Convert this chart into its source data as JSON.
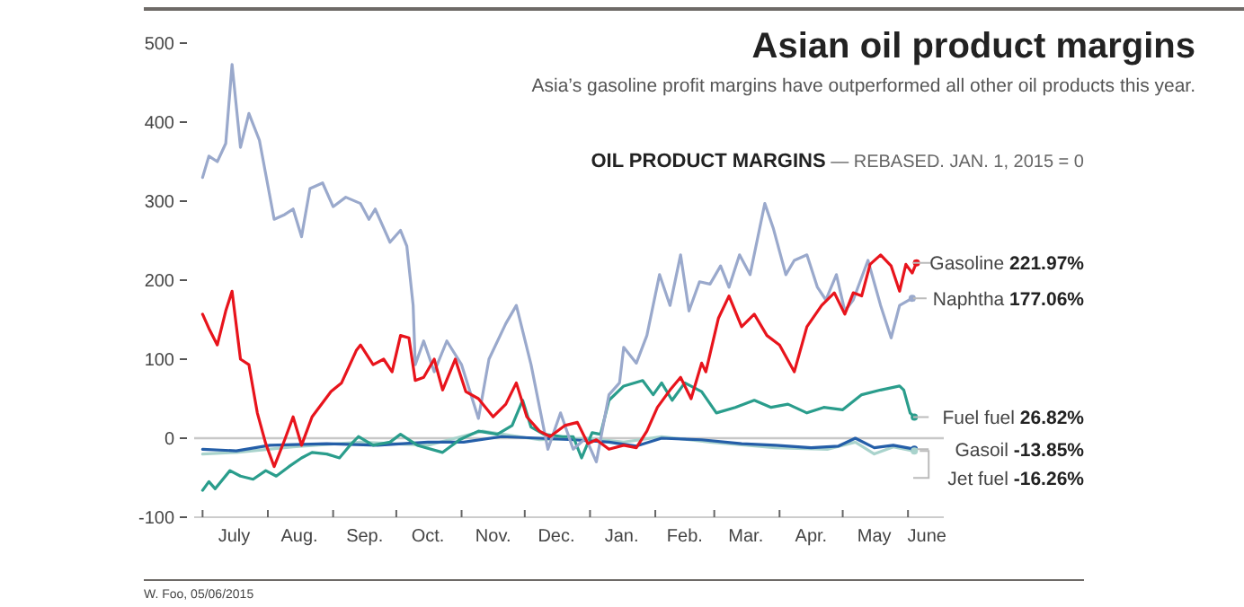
{
  "chart_data": {
    "type": "line",
    "title": "Asian oil product margins",
    "subtitle": "Asia’s gasoline profit margins have outperformed all other oil products this year.",
    "legend_title": "OIL PRODUCT MARGINS",
    "annotations": [
      "— REBASED. JAN. 1, 2015 = 0",
      "W. Foo, 05/06/2015",
      "221.97%",
      "177.06%",
      "26.82%",
      "-13.85%",
      "-16.26%"
    ],
    "xlim": [
      "2014-06-27",
      "2015-06-18"
    ],
    "xticks": [
      {
        "value": "2014-07-01",
        "label": null
      },
      {
        "value": "2014-07-16",
        "label": "July"
      },
      {
        "value": "2014-08-01",
        "label": null
      },
      {
        "value": "2014-08-16",
        "label": "Aug."
      },
      {
        "value": "2014-09-01",
        "label": null
      },
      {
        "value": "2014-09-16",
        "label": "Sep."
      },
      {
        "value": "2014-10-01",
        "label": null
      },
      {
        "value": "2014-10-16",
        "label": "Oct."
      },
      {
        "value": "2014-11-01",
        "label": null
      },
      {
        "value": "2014-11-16",
        "label": "Nov."
      },
      {
        "value": "2014-12-01",
        "label": null
      },
      {
        "value": "2014-12-16",
        "label": "Dec."
      },
      {
        "value": "2015-01-01",
        "label": null
      },
      {
        "value": "2015-01-16",
        "label": "Jan."
      },
      {
        "value": "2015-02-01",
        "label": null
      },
      {
        "value": "2015-02-15",
        "label": "Feb."
      },
      {
        "value": "2015-03-01",
        "label": null
      },
      {
        "value": "2015-03-16",
        "label": "Mar."
      },
      {
        "value": "2015-04-01",
        "label": null
      },
      {
        "value": "2015-04-16",
        "label": "Apr."
      },
      {
        "value": "2015-05-01",
        "label": null
      },
      {
        "value": "2015-05-16",
        "label": "May"
      },
      {
        "value": "2015-06-01",
        "label": null
      },
      {
        "value": "2015-06-10",
        "label": "June"
      }
    ],
    "ylim": [
      -100,
      500
    ],
    "yticks": [
      -100,
      0,
      100,
      200,
      300,
      400,
      500
    ],
    "ref_lines": [
      {
        "axis": "y",
        "value": 0,
        "color": "#c8c8c8"
      }
    ],
    "grid": false,
    "legend": "right",
    "line_style": "solid",
    "series": [
      {
        "name": "Gasoline",
        "color": "#e8141c",
        "x": [
          "2014-07-01",
          "2014-07-04",
          "2014-07-08",
          "2014-07-12",
          "2014-07-15",
          "2014-07-19",
          "2014-07-23",
          "2014-07-27",
          "2014-07-31",
          "2014-08-04",
          "2014-08-09",
          "2014-08-13",
          "2014-08-17",
          "2014-08-22",
          "2014-08-31",
          "2014-09-05",
          "2014-09-12",
          "2014-09-14",
          "2014-09-20",
          "2014-09-25",
          "2014-09-29",
          "2014-10-03",
          "2014-10-07",
          "2014-10-10",
          "2014-10-14",
          "2014-10-19",
          "2014-10-23",
          "2014-10-29",
          "2014-11-03",
          "2014-11-09",
          "2014-11-16",
          "2014-11-22",
          "2014-11-27",
          "2014-12-02",
          "2014-12-08",
          "2014-12-13",
          "2014-12-20",
          "2014-12-26",
          "2014-12-31",
          "2015-01-04",
          "2015-01-10",
          "2015-01-17",
          "2015-01-23",
          "2015-01-28",
          "2015-02-02",
          "2015-02-08",
          "2015-02-13",
          "2015-02-18",
          "2015-02-23",
          "2015-02-25",
          "2015-03-03",
          "2015-03-08",
          "2015-03-14",
          "2015-03-20",
          "2015-03-26",
          "2015-04-01",
          "2015-04-08",
          "2015-04-14",
          "2015-04-21",
          "2015-04-27",
          "2015-05-02",
          "2015-05-06",
          "2015-05-10",
          "2015-05-14",
          "2015-05-19",
          "2015-05-24",
          "2015-05-28",
          "2015-05-31",
          "2015-06-03",
          "2015-06-05"
        ],
        "values": [
          157,
          139,
          118,
          161,
          186,
          100,
          93,
          32,
          -7,
          -36,
          -2,
          27,
          -9,
          27,
          59,
          70,
          111,
          118,
          93,
          100,
          84,
          130,
          127,
          73,
          77,
          100,
          61,
          100,
          59,
          50,
          27,
          43,
          70,
          27,
          9,
          2,
          16,
          20,
          -7,
          -2,
          -14,
          -9,
          -12,
          9,
          39,
          61,
          77,
          50,
          95,
          84,
          152,
          180,
          141,
          157,
          130,
          118,
          84,
          141,
          168,
          184,
          157,
          184,
          180,
          220,
          232,
          218,
          186,
          220,
          209,
          221.97
        ]
      },
      {
        "name": "Naphtha",
        "color": "#9aa9cc",
        "x": [
          "2014-07-01",
          "2014-07-04",
          "2014-07-08",
          "2014-07-12",
          "2014-07-15",
          "2014-07-19",
          "2014-07-23",
          "2014-07-28",
          "2014-07-31",
          "2014-08-04",
          "2014-08-09",
          "2014-08-13",
          "2014-08-17",
          "2014-08-21",
          "2014-08-27",
          "2014-09-01",
          "2014-09-07",
          "2014-09-14",
          "2014-09-18",
          "2014-09-21",
          "2014-09-28",
          "2014-10-03",
          "2014-10-06",
          "2014-10-09",
          "2014-10-10",
          "2014-10-14",
          "2014-10-19",
          "2014-10-25",
          "2014-11-01",
          "2014-11-09",
          "2014-11-14",
          "2014-11-22",
          "2014-11-27",
          "2014-12-04",
          "2014-12-12",
          "2014-12-18",
          "2014-12-24",
          "2014-12-30",
          "2015-01-04",
          "2015-01-10",
          "2015-01-15",
          "2015-01-17",
          "2015-01-23",
          "2015-01-28",
          "2015-02-03",
          "2015-02-08",
          "2015-02-13",
          "2015-02-17",
          "2015-02-22",
          "2015-02-27",
          "2015-03-04",
          "2015-03-08",
          "2015-03-13",
          "2015-03-18",
          "2015-03-25",
          "2015-03-29",
          "2015-04-04",
          "2015-04-08",
          "2015-04-14",
          "2015-04-19",
          "2015-04-23",
          "2015-04-28",
          "2015-05-02",
          "2015-05-06",
          "2015-05-13",
          "2015-05-19",
          "2015-05-24",
          "2015-05-28",
          "2015-06-03"
        ],
        "values": [
          330,
          357,
          350,
          373,
          473,
          368,
          411,
          377,
          334,
          277,
          283,
          290,
          255,
          316,
          323,
          293,
          305,
          297,
          277,
          290,
          248,
          263,
          243,
          168,
          93,
          123,
          84,
          123,
          93,
          25,
          100,
          145,
          168,
          93,
          -14,
          32,
          -14,
          0,
          -30,
          55,
          70,
          115,
          95,
          130,
          207,
          168,
          232,
          161,
          198,
          195,
          218,
          191,
          232,
          207,
          297,
          266,
          207,
          225,
          232,
          191,
          175,
          207,
          161,
          175,
          225,
          168,
          127,
          168,
          177.06
        ]
      },
      {
        "name": "Fuel fuel",
        "color": "#2a9d8c",
        "x": [
          "2014-07-01",
          "2014-07-04",
          "2014-07-07",
          "2014-07-14",
          "2014-07-19",
          "2014-07-25",
          "2014-07-31",
          "2014-08-05",
          "2014-08-11",
          "2014-08-17",
          "2014-08-22",
          "2014-08-29",
          "2014-09-04",
          "2014-09-09",
          "2014-09-13",
          "2014-09-20",
          "2014-09-28",
          "2014-10-03",
          "2014-10-11",
          "2014-10-23",
          "2014-10-31",
          "2014-11-09",
          "2014-11-18",
          "2014-11-25",
          "2014-11-30",
          "2014-12-04",
          "2014-12-10",
          "2014-12-19",
          "2014-12-24",
          "2014-12-28",
          "2015-01-02",
          "2015-01-06",
          "2015-01-10",
          "2015-01-17",
          "2015-01-26",
          "2015-01-31",
          "2015-02-04",
          "2015-02-09",
          "2015-02-15",
          "2015-02-23",
          "2015-03-02",
          "2015-03-11",
          "2015-03-20",
          "2015-03-28",
          "2015-04-05",
          "2015-04-14",
          "2015-04-22",
          "2015-05-01",
          "2015-05-10",
          "2015-05-19",
          "2015-05-28",
          "2015-05-30",
          "2015-06-02",
          "2015-06-04"
        ],
        "values": [
          -66,
          -55,
          -64,
          -41,
          -48,
          -52,
          -41,
          -48,
          -36,
          -25,
          -18,
          -20,
          -25,
          -9,
          2,
          -9,
          -5,
          5,
          -9,
          -18,
          -2,
          9,
          5,
          16,
          48,
          14,
          5,
          2,
          2,
          -25,
          7,
          5,
          48,
          66,
          73,
          55,
          70,
          48,
          70,
          59,
          32,
          39,
          48,
          39,
          43,
          32,
          39,
          36,
          55,
          61,
          66,
          61,
          32,
          26.82
        ]
      },
      {
        "name": "Gasoil",
        "color": "#245ea8",
        "x": [
          "2014-07-01",
          "2014-07-17",
          "2014-08-02",
          "2014-08-29",
          "2014-09-22",
          "2014-10-16",
          "2014-11-02",
          "2014-11-20",
          "2014-12-08",
          "2014-12-24",
          "2015-01-10",
          "2015-01-23",
          "2015-02-04",
          "2015-02-23",
          "2015-03-14",
          "2015-03-30",
          "2015-04-16",
          "2015-04-29",
          "2015-05-07",
          "2015-05-16",
          "2015-05-25",
          "2015-06-04"
        ],
        "values": [
          -14,
          -16,
          -9,
          -7,
          -9,
          -5,
          -5,
          2,
          0,
          -2,
          -5,
          -10,
          0,
          -2,
          -7,
          -9,
          -12,
          -10,
          0,
          -12,
          -9,
          -13.85
        ]
      },
      {
        "name": "Jet fuel",
        "color": "#a9d3cc",
        "x": [
          "2014-07-01",
          "2014-07-17",
          "2014-08-13",
          "2014-09-14",
          "2014-10-16",
          "2014-11-11",
          "2014-12-08",
          "2014-12-31",
          "2015-01-17",
          "2015-02-04",
          "2015-02-27",
          "2015-03-30",
          "2015-04-24",
          "2015-05-07",
          "2015-05-16",
          "2015-05-25",
          "2015-06-04"
        ],
        "values": [
          -20,
          -18,
          -11,
          -5,
          -9,
          9,
          -2,
          0,
          -5,
          2,
          -5,
          -12,
          -14,
          -5,
          -20,
          -11,
          -16.26
        ]
      }
    ]
  }
}
